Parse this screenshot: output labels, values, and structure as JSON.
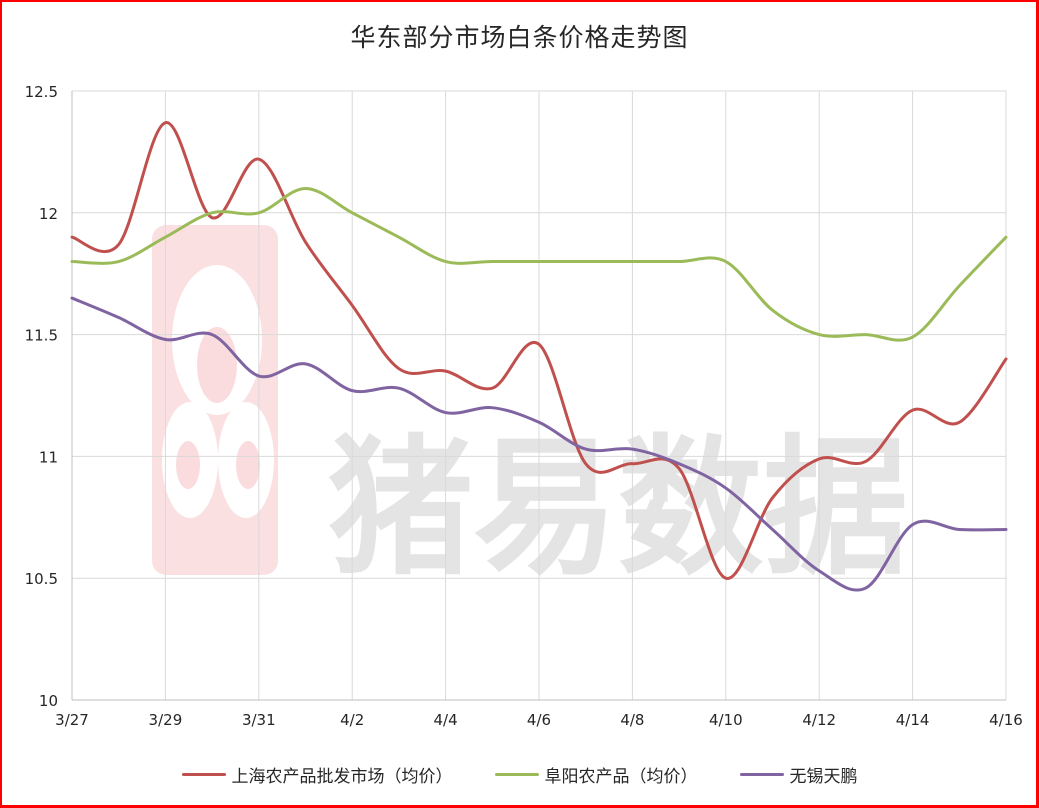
{
  "chart_data": {
    "type": "line",
    "title": "华东部分市场白条价格走势图",
    "xlabel": "",
    "ylabel": "",
    "ylim": [
      10,
      12.5
    ],
    "yticks": [
      "12.5",
      "12",
      "11.5",
      "11",
      "10.5",
      "10"
    ],
    "ytick_values": [
      12.5,
      12,
      11.5,
      11,
      10.5,
      10
    ],
    "x": [
      "3/27",
      "3/28",
      "3/29",
      "3/30",
      "3/31",
      "4/1",
      "4/2",
      "4/3",
      "4/4",
      "4/5",
      "4/6",
      "4/7",
      "4/8",
      "4/9",
      "4/10",
      "4/11",
      "4/12",
      "4/13",
      "4/14",
      "4/15",
      "4/16"
    ],
    "xtick_labels": [
      "3/27",
      "3/29",
      "3/31",
      "4/2",
      "4/4",
      "4/6",
      "4/8",
      "4/10",
      "4/12",
      "4/14",
      "4/16"
    ],
    "grid": true,
    "smooth": true,
    "legend_position": "bottom",
    "series": [
      {
        "name": "上海农产品批发市场（均价）",
        "color": "#c0504d",
        "values": [
          11.9,
          11.87,
          12.37,
          11.98,
          12.22,
          11.88,
          11.62,
          11.36,
          11.35,
          11.28,
          11.46,
          10.97,
          10.97,
          10.95,
          10.5,
          10.83,
          10.99,
          10.98,
          11.19,
          11.14,
          11.4
        ]
      },
      {
        "name": "阜阳农产品（均价）",
        "color": "#9bbb59",
        "values": [
          11.8,
          11.8,
          11.9,
          12.0,
          12.0,
          12.1,
          12.0,
          11.9,
          11.8,
          11.8,
          11.8,
          11.8,
          11.8,
          11.8,
          11.8,
          11.6,
          11.5,
          11.5,
          11.49,
          11.7,
          11.9
        ]
      },
      {
        "name": "无锡天鹏",
        "color": "#8064a2",
        "values": [
          11.65,
          11.57,
          11.48,
          11.5,
          11.33,
          11.38,
          11.27,
          11.28,
          11.18,
          11.2,
          11.14,
          11.03,
          11.03,
          10.97,
          10.87,
          10.7,
          10.53,
          10.46,
          10.72,
          10.7,
          10.7
        ]
      }
    ]
  },
  "watermark": {
    "text": "猪易数据",
    "logo_color": "#f7d2d4"
  },
  "colors": {
    "border": "#ff0000",
    "grid": "#d9d9d9",
    "axis": "#bfbfbf",
    "text": "#262626"
  }
}
